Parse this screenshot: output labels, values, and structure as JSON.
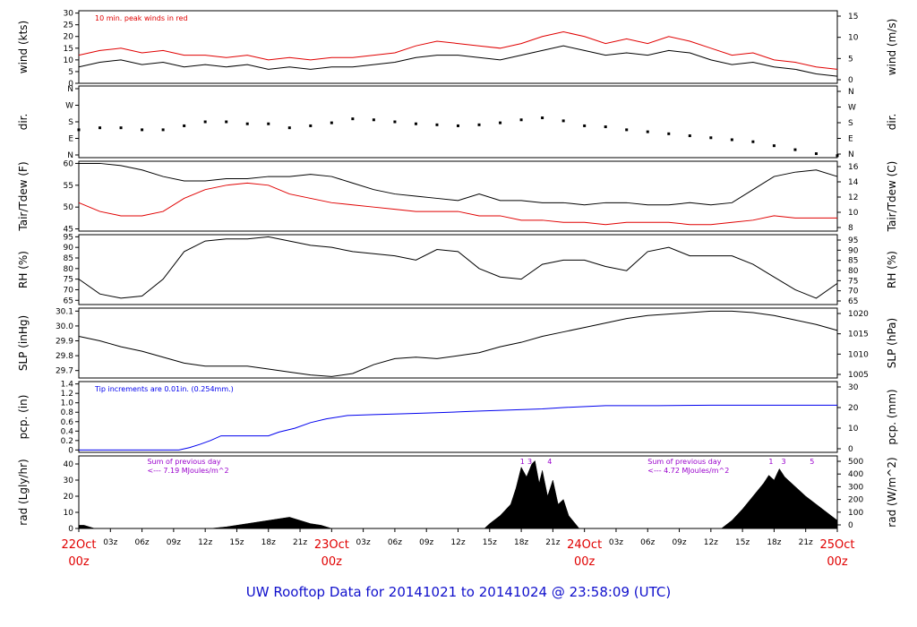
{
  "page": {
    "title": "UW Rooftop Data for 20141021  to  20141024 @ 23:58:09  (UTC)",
    "title_color": "#1010cc"
  },
  "x_axis": {
    "ticks": [
      "22Oct",
      "03z",
      "06z",
      "09z",
      "12z",
      "15z",
      "18z",
      "21z",
      "23Oct",
      "03z",
      "06z",
      "09z",
      "12z",
      "15z",
      "18z",
      "21z",
      "24Oct",
      "03z",
      "06z",
      "09z",
      "12z",
      "15z",
      "18z",
      "21z",
      "25Oct"
    ],
    "day_ticks": [
      {
        "day": "22Oct",
        "hour": "00z"
      },
      {
        "day": "23Oct",
        "hour": "00z"
      },
      {
        "day": "24Oct",
        "hour": "00z"
      },
      {
        "day": "25Oct",
        "hour": "00z"
      }
    ],
    "day_label_color": "#e00000",
    "hours_span": 72
  },
  "colors": {
    "black": "#000000",
    "red": "#e00000",
    "blue": "#0000ee",
    "purple": "#9900cc"
  },
  "chart_data": [
    {
      "type": "line",
      "name": "wind",
      "ylabel": "wind (kts)",
      "y2label": "wind (m/s)",
      "ylim": [
        0,
        31
      ],
      "yticks": [
        "0",
        "5",
        "10",
        "15",
        "20",
        "25",
        "30"
      ],
      "y2ticks": [
        "0",
        "5",
        "10",
        "15"
      ],
      "annotation": "10 min. peak winds in red",
      "annotation_color": "#e00000",
      "series": [
        {
          "color": "#000000",
          "x": [
            0,
            2,
            4,
            6,
            8,
            10,
            12,
            14,
            16,
            18,
            20,
            22,
            24,
            26,
            28,
            30,
            32,
            34,
            36,
            38,
            40,
            42,
            44,
            46,
            48,
            50,
            52,
            54,
            56,
            58,
            60,
            62,
            64,
            66,
            68,
            70,
            72
          ],
          "y": [
            7,
            9,
            10,
            8,
            9,
            7,
            8,
            7,
            8,
            6,
            7,
            6,
            7,
            7,
            8,
            9,
            11,
            12,
            12,
            11,
            10,
            12,
            14,
            16,
            14,
            12,
            13,
            12,
            14,
            13,
            10,
            8,
            9,
            7,
            6,
            4,
            3
          ]
        },
        {
          "color": "#e00000",
          "x": [
            0,
            2,
            4,
            6,
            8,
            10,
            12,
            14,
            16,
            18,
            20,
            22,
            24,
            26,
            28,
            30,
            32,
            34,
            36,
            38,
            40,
            42,
            44,
            46,
            48,
            50,
            52,
            54,
            56,
            58,
            60,
            62,
            64,
            66,
            68,
            70,
            72
          ],
          "y": [
            12,
            14,
            15,
            13,
            14,
            12,
            12,
            11,
            12,
            10,
            11,
            10,
            11,
            11,
            12,
            13,
            16,
            18,
            17,
            16,
            15,
            17,
            20,
            22,
            20,
            17,
            19,
            17,
            20,
            18,
            15,
            12,
            13,
            10,
            9,
            7,
            6
          ]
        }
      ]
    },
    {
      "type": "scatter",
      "name": "dir",
      "ylabel": "dir.",
      "y2label": "dir.",
      "ylim": [
        0,
        360
      ],
      "yticks": [
        "N",
        "E",
        "S",
        "W",
        "N"
      ],
      "y2ticks": [
        "N",
        "E",
        "S",
        "W",
        "N"
      ],
      "series": [
        {
          "color": "#000000",
          "x": [
            0,
            2,
            4,
            6,
            8,
            10,
            12,
            14,
            16,
            18,
            20,
            22,
            24,
            26,
            28,
            30,
            32,
            34,
            36,
            38,
            40,
            42,
            44,
            46,
            48,
            50,
            52,
            54,
            56,
            58,
            60,
            62,
            64,
            66,
            68,
            70,
            72
          ],
          "y": [
            140,
            150,
            150,
            140,
            140,
            160,
            180,
            180,
            170,
            170,
            150,
            160,
            175,
            195,
            190,
            180,
            170,
            165,
            160,
            165,
            175,
            190,
            200,
            185,
            160,
            155,
            140,
            130,
            120,
            110,
            100,
            90,
            80,
            60,
            40,
            20,
            10
          ]
        }
      ]
    },
    {
      "type": "line",
      "name": "temperature",
      "ylabel": "Tair/Tdew (F)",
      "y2label": "Tair/Tdew (C)",
      "ylim": [
        44.5,
        60.5
      ],
      "yticks": [
        "45",
        "50",
        "55",
        "60"
      ],
      "y2ticks": [
        "8",
        "10",
        "12",
        "14",
        "16"
      ],
      "series": [
        {
          "color": "#000000",
          "x": [
            0,
            2,
            4,
            6,
            8,
            10,
            12,
            14,
            16,
            18,
            20,
            22,
            24,
            26,
            28,
            30,
            32,
            34,
            36,
            38,
            40,
            42,
            44,
            46,
            48,
            50,
            52,
            54,
            56,
            58,
            60,
            62,
            64,
            66,
            68,
            70,
            72
          ],
          "y": [
            60,
            60,
            59.5,
            58.5,
            57,
            56,
            56,
            56.5,
            56.5,
            57,
            57,
            57.5,
            57,
            55.5,
            54,
            53,
            52.5,
            52,
            51.5,
            53,
            51.5,
            51.5,
            51,
            51,
            50.5,
            51,
            51,
            50.5,
            50.5,
            51,
            50.5,
            51,
            54,
            57,
            58,
            58.5,
            57
          ]
        },
        {
          "color": "#e00000",
          "x": [
            0,
            2,
            4,
            6,
            8,
            10,
            12,
            14,
            16,
            18,
            20,
            22,
            24,
            26,
            28,
            30,
            32,
            34,
            36,
            38,
            40,
            42,
            44,
            46,
            48,
            50,
            52,
            54,
            56,
            58,
            60,
            62,
            64,
            66,
            68,
            70,
            72
          ],
          "y": [
            51,
            49,
            48,
            48,
            49,
            52,
            54,
            55,
            55.5,
            55,
            53,
            52,
            51,
            50.5,
            50,
            49.5,
            49,
            49,
            49,
            48,
            48,
            47,
            47,
            46.5,
            46.5,
            46,
            46.5,
            46.5,
            46.5,
            46,
            46,
            46.5,
            47,
            48,
            47.5,
            47.5,
            47.5
          ]
        }
      ]
    },
    {
      "type": "line",
      "name": "rh",
      "ylabel": "RH (%)",
      "y2label": "RH (%)",
      "ylim": [
        63,
        96
      ],
      "yticks": [
        "65",
        "70",
        "75",
        "80",
        "85",
        "90",
        "95"
      ],
      "y2ticks": [
        "65",
        "70",
        "75",
        "80",
        "85",
        "90",
        "95"
      ],
      "series": [
        {
          "color": "#000000",
          "x": [
            0,
            2,
            4,
            6,
            8,
            10,
            12,
            14,
            16,
            18,
            20,
            22,
            24,
            26,
            28,
            30,
            32,
            34,
            36,
            38,
            40,
            42,
            44,
            46,
            48,
            50,
            52,
            54,
            56,
            58,
            60,
            62,
            64,
            66,
            68,
            70,
            72
          ],
          "y": [
            75,
            68,
            66,
            67,
            75,
            88,
            93,
            94,
            94,
            95,
            93,
            91,
            90,
            88,
            87,
            86,
            84,
            89,
            88,
            80,
            76,
            75,
            82,
            84,
            84,
            81,
            79,
            88,
            90,
            86,
            86,
            86,
            82,
            76,
            70,
            66,
            73
          ]
        }
      ]
    },
    {
      "type": "line",
      "name": "pressure",
      "ylabel": "SLP (inHg)",
      "y2label": "SLP (hPa)",
      "ylim": [
        29.65,
        30.12
      ],
      "yticks": [
        "29.7",
        "29.8",
        "29.9",
        "30.0",
        "30.1"
      ],
      "y2ticks": [
        "1005",
        "1010",
        "1015",
        "1020"
      ],
      "series": [
        {
          "color": "#000000",
          "x": [
            0,
            2,
            4,
            6,
            8,
            10,
            12,
            14,
            16,
            18,
            20,
            22,
            24,
            26,
            28,
            30,
            32,
            34,
            36,
            38,
            40,
            42,
            44,
            46,
            48,
            50,
            52,
            54,
            56,
            58,
            60,
            62,
            64,
            66,
            68,
            70,
            72
          ],
          "y": [
            29.93,
            29.9,
            29.86,
            29.83,
            29.79,
            29.75,
            29.73,
            29.73,
            29.73,
            29.71,
            29.69,
            29.67,
            29.66,
            29.68,
            29.74,
            29.78,
            29.79,
            29.78,
            29.8,
            29.82,
            29.86,
            29.89,
            29.93,
            29.96,
            29.99,
            30.02,
            30.05,
            30.07,
            30.08,
            30.09,
            30.1,
            30.1,
            30.09,
            30.07,
            30.04,
            30.01,
            29.97
          ]
        }
      ]
    },
    {
      "type": "line",
      "name": "precip",
      "ylabel": "pcp. (in)",
      "y2label": "pcp. (mm)",
      "ylim": [
        -0.05,
        1.45
      ],
      "yticks": [
        "0",
        "0.2",
        "0.4",
        "0.6",
        "0.8",
        "1.0",
        "1.2",
        "1.4"
      ],
      "y2ticks": [
        "0",
        "10",
        "20",
        "30"
      ],
      "annotation": "Tip increments are 0.01in. (0.254mm.)",
      "annotation_color": "#0000ee",
      "series": [
        {
          "color": "#0000ee",
          "x": [
            0,
            9.5,
            10.5,
            11.5,
            12.5,
            13.5,
            18,
            19,
            20.5,
            22,
            23.5,
            25.5,
            28,
            31,
            34,
            37.5,
            40,
            44,
            46,
            50,
            55,
            60,
            65,
            72
          ],
          "y": [
            0,
            0,
            0.05,
            0.12,
            0.2,
            0.3,
            0.3,
            0.38,
            0.46,
            0.58,
            0.66,
            0.73,
            0.75,
            0.77,
            0.79,
            0.82,
            0.84,
            0.87,
            0.9,
            0.94,
            0.94,
            0.95,
            0.95,
            0.95
          ]
        }
      ]
    },
    {
      "type": "area",
      "name": "radiation",
      "ylabel": "rad (Lgly/hr)",
      "y2label": "rad (W/m^2)",
      "ylim": [
        0,
        45
      ],
      "yticks": [
        "0",
        "10",
        "20",
        "30",
        "40"
      ],
      "y2ticks": [
        "0",
        "100",
        "200",
        "300",
        "400",
        "500"
      ],
      "annotations": [
        {
          "text": "Sum of previous day",
          "hour": 6.5,
          "row": 0
        },
        {
          "text": "<--- 7.19 MJoules/m^2",
          "hour": 6.5,
          "row": 1
        },
        {
          "text": "Sum of previous day",
          "hour": 54,
          "row": 0
        },
        {
          "text": "<--- 4.72 MJoules/m^2",
          "hour": 54,
          "row": 1
        }
      ],
      "annotation_color": "#9900cc",
      "markers": [
        {
          "text": "1",
          "hour": 42.1
        },
        {
          "text": "3",
          "hour": 42.8
        },
        {
          "text": "4",
          "hour": 44.7
        },
        {
          "text": "1",
          "hour": 65.7
        },
        {
          "text": "3",
          "hour": 66.9
        },
        {
          "text": "5",
          "hour": 69.6
        }
      ],
      "series": [
        {
          "color": "#000000",
          "x": [
            0,
            0.5,
            1,
            1.5,
            12.5,
            14,
            15,
            16,
            17,
            18,
            19,
            20,
            21,
            22,
            23,
            24,
            38.5,
            39,
            40,
            41,
            41.5,
            42,
            42.5,
            43,
            43.3,
            43.7,
            44,
            44.5,
            45,
            45.5,
            46,
            46.5,
            47,
            47.5,
            61,
            62,
            63,
            64,
            65,
            65.5,
            66,
            66.5,
            67,
            68,
            69,
            70,
            71,
            72
          ],
          "y": [
            2,
            2,
            1,
            0,
            0,
            1,
            2,
            3,
            4,
            5,
            6,
            7,
            5,
            3,
            2,
            0,
            0,
            3,
            8,
            15,
            25,
            38,
            32,
            40,
            42,
            28,
            36,
            20,
            30,
            15,
            18,
            8,
            4,
            0,
            0,
            5,
            12,
            20,
            28,
            33,
            30,
            37,
            32,
            26,
            20,
            15,
            10,
            5
          ]
        }
      ]
    }
  ]
}
